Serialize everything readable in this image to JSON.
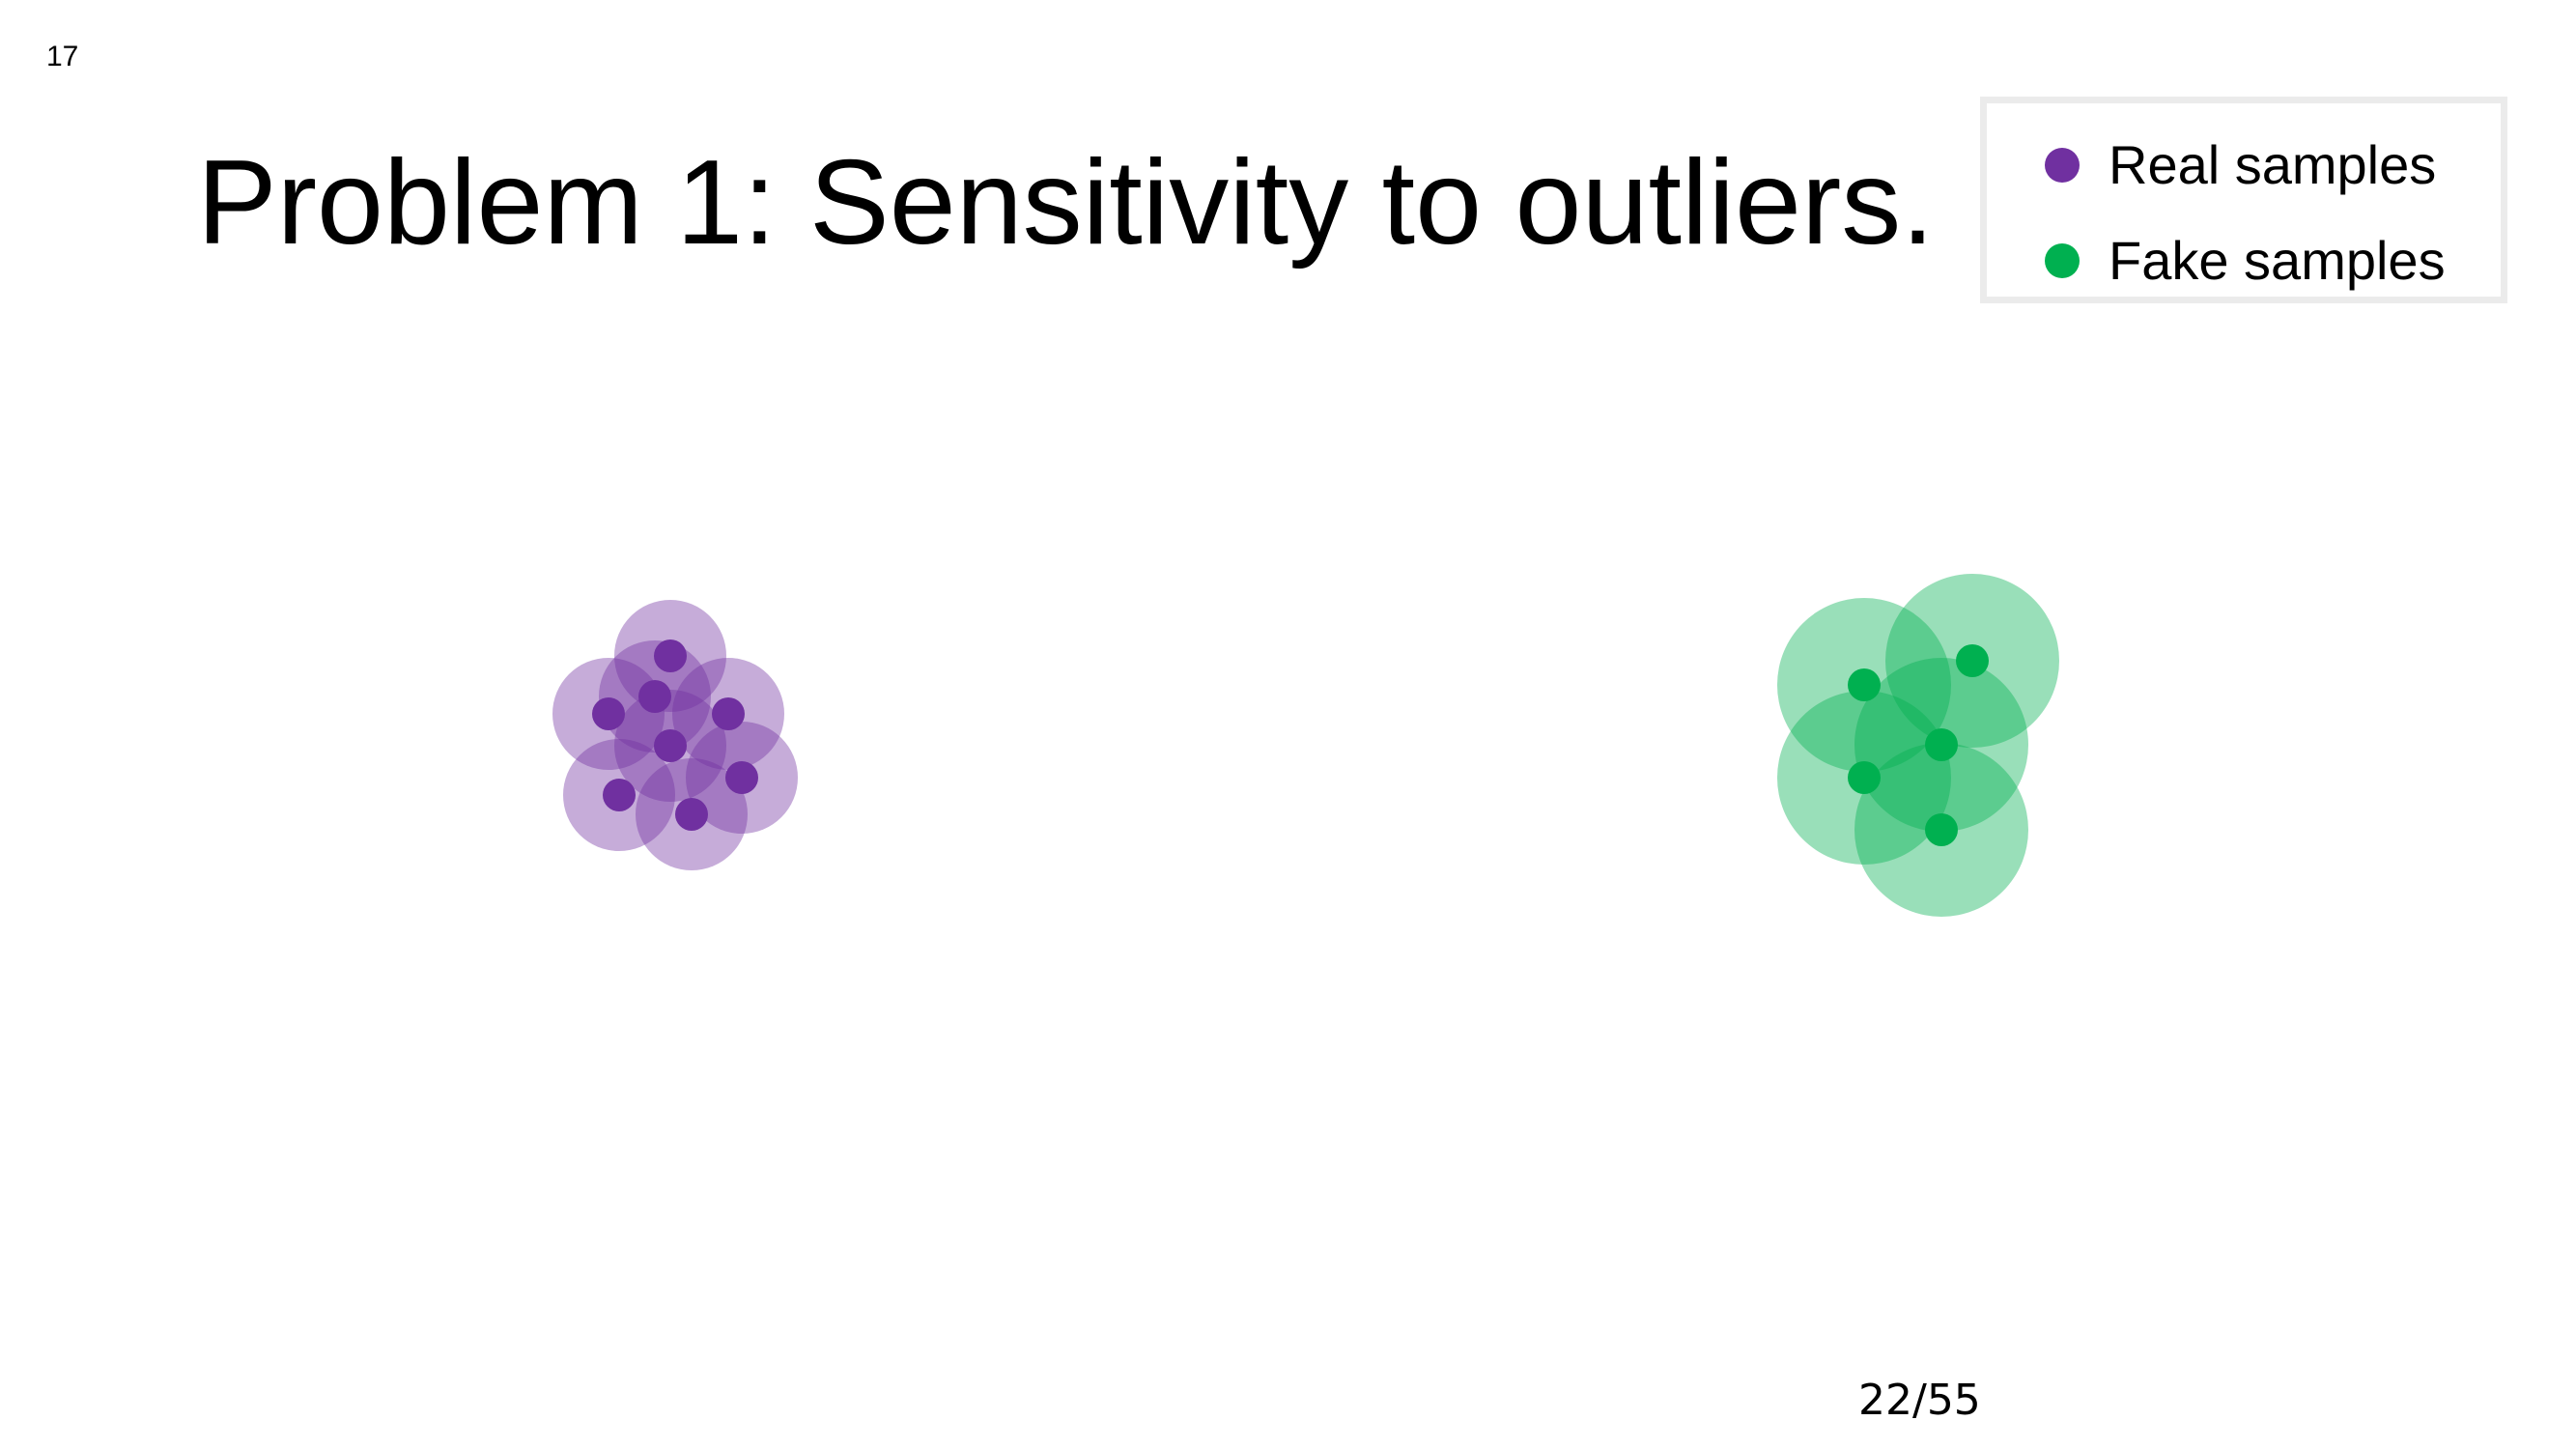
{
  "slide_number": "17",
  "title": "Problem 1: Sensitivity to outliers.",
  "legend": {
    "items": [
      {
        "label": "Real samples",
        "color": "#7030a0",
        "name": "real"
      },
      {
        "label": "Fake samples",
        "color": "#00b050",
        "name": "fake"
      }
    ]
  },
  "colors": {
    "real_point": "#7030a0",
    "real_halo": "#7030a0",
    "fake_point": "#00b050",
    "fake_halo": "#00b050"
  },
  "page_counter": "22/55"
}
